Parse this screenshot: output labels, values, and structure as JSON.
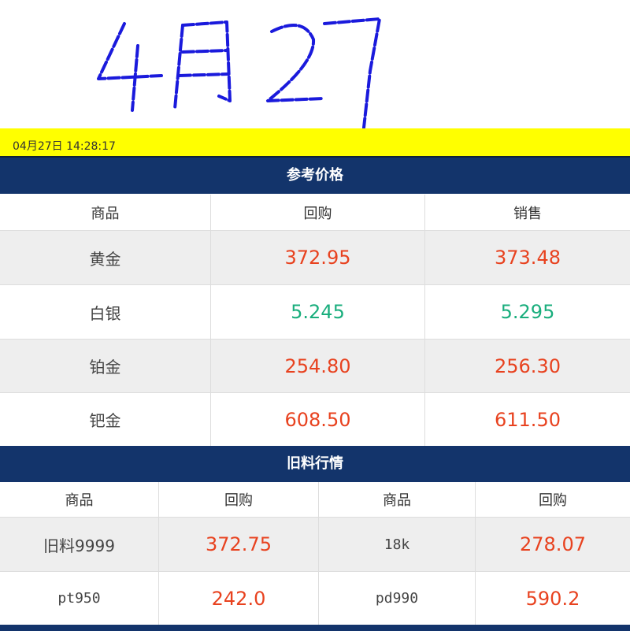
{
  "handwritten_note": "4月27",
  "timestamp": "04月27日 14:28:17",
  "reference": {
    "title": "参考价格",
    "headers": [
      "商品",
      "回购",
      "销售"
    ],
    "rows": [
      {
        "name": "黄金",
        "buy": "372.95",
        "sell": "373.48",
        "trend": "up"
      },
      {
        "name": "白银",
        "buy": "5.245",
        "sell": "5.295",
        "trend": "down"
      },
      {
        "name": "铂金",
        "buy": "254.80",
        "sell": "256.30",
        "trend": "up"
      },
      {
        "name": "钯金",
        "buy": "608.50",
        "sell": "611.50",
        "trend": "up"
      }
    ]
  },
  "old_material": {
    "title": "旧料行情",
    "headers": [
      "商品",
      "回购",
      "商品",
      "回购"
    ],
    "rows": [
      {
        "name1": "旧料9999",
        "buy1": "372.75",
        "name2": "18k",
        "buy2": "278.07"
      },
      {
        "name1": "pt950",
        "buy1": "242.0",
        "name2": "pd990",
        "buy2": "590.2"
      }
    ]
  },
  "colors": {
    "up": "#e8421f",
    "down": "#1aae7d",
    "header": "#13346b",
    "timebar": "#ffff00",
    "ink": "#1a1adc"
  }
}
